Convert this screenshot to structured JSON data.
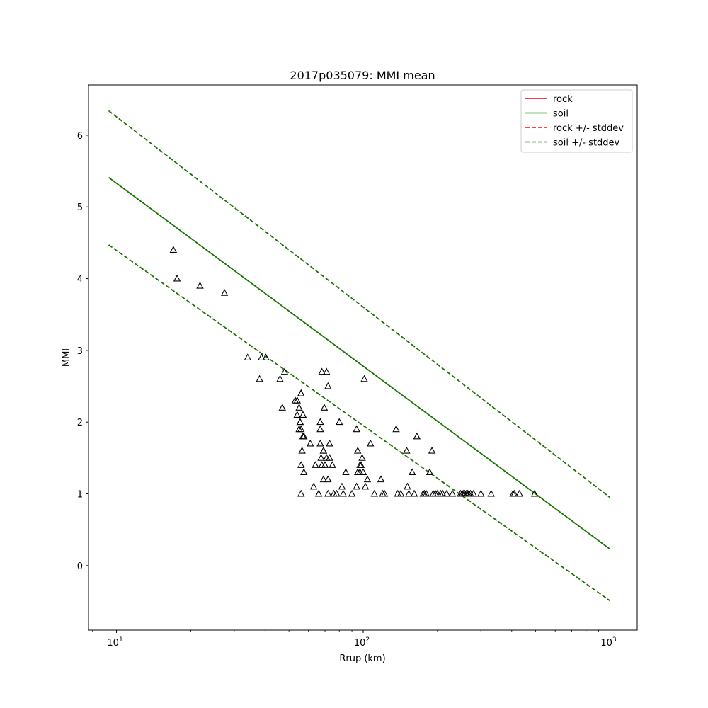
{
  "chart_data": {
    "type": "scatter",
    "title": "2017p035079: MMI mean",
    "xlabel": "Rrup (km)",
    "ylabel": "MMI",
    "xscale": "log",
    "xlim": [
      7.7,
      1290
    ],
    "ylim": [
      -0.9,
      6.7
    ],
    "x_ticks": [
      10,
      100,
      1000
    ],
    "x_tick_labels": [
      {
        "base": "10",
        "exp": "1"
      },
      {
        "base": "10",
        "exp": "2"
      },
      {
        "base": "10",
        "exp": "3"
      }
    ],
    "y_ticks": [
      0,
      1,
      2,
      3,
      4,
      5,
      6
    ],
    "y_tick_labels": [
      "0",
      "1",
      "2",
      "3",
      "4",
      "5",
      "6"
    ],
    "grid": false,
    "legend_position": "top-right",
    "colors": {
      "rock": "#ff0000",
      "soil": "#008000",
      "points": "#000000"
    },
    "series": [
      {
        "name": "rock",
        "style": "solid",
        "color": "#ff0000",
        "x": [
          9.3,
          1000
        ],
        "y": [
          5.41,
          0.23
        ]
      },
      {
        "name": "soil",
        "style": "solid",
        "color": "#008000",
        "x": [
          9.3,
          1000
        ],
        "y": [
          5.41,
          0.23
        ]
      },
      {
        "name": "rock +/- stddev",
        "style": "dashed",
        "color": "#ff0000",
        "x": [
          9.3,
          1000
        ],
        "y_upper": [
          6.34,
          0.95
        ],
        "y_lower": [
          4.47,
          -0.49
        ]
      },
      {
        "name": "soil +/- stddev",
        "style": "dashed",
        "color": "#008000",
        "x": [
          9.3,
          1000
        ],
        "y_upper": [
          6.34,
          0.95
        ],
        "y_lower": [
          4.47,
          -0.49
        ]
      }
    ],
    "points": {
      "marker": "triangle",
      "x": [
        17,
        17.6,
        21.8,
        27.4,
        34,
        38,
        38.7,
        40.3,
        46,
        47,
        48,
        53,
        54,
        54,
        55,
        55,
        55.5,
        55.5,
        56,
        56,
        56,
        56,
        56,
        56.5,
        57,
        57,
        57.5,
        57.5,
        61,
        63,
        64,
        66,
        66,
        67,
        67,
        67,
        67.5,
        68,
        68,
        69,
        69,
        69,
        69.5,
        70,
        71,
        71,
        72,
        72,
        72,
        73,
        73,
        75,
        76,
        78,
        80,
        82,
        83,
        85,
        90,
        94,
        94,
        95,
        95,
        97,
        97,
        98,
        99,
        100,
        101,
        102,
        104,
        107,
        111,
        118,
        120,
        122,
        136,
        138,
        142,
        150,
        151,
        153,
        158,
        161,
        165,
        175,
        177,
        180,
        186,
        190,
        192,
        196,
        200,
        206,
        210,
        218,
        230,
        248,
        252,
        255,
        258,
        262,
        265,
        268,
        272,
        280,
        300,
        330,
        405,
        410,
        430,
        495
      ],
      "y": [
        4.4,
        4.0,
        3.9,
        3.8,
        2.9,
        2.6,
        2.9,
        2.9,
        2.6,
        2.2,
        2.7,
        2.3,
        2.1,
        2.3,
        2.2,
        1.9,
        2.0,
        2.0,
        1.9,
        2.4,
        2.4,
        1.4,
        1.0,
        1.6,
        2.1,
        1.8,
        1.8,
        1.3,
        1.7,
        1.1,
        1.4,
        1.0,
        1.0,
        2.0,
        1.9,
        1.7,
        1.5,
        1.4,
        2.7,
        1.6,
        1.6,
        1.2,
        2.2,
        1.4,
        2.7,
        1.5,
        1.2,
        1.0,
        2.5,
        1.5,
        1.7,
        1.4,
        1.0,
        1.0,
        2.0,
        1.1,
        1.0,
        1.3,
        1.0,
        1.1,
        1.9,
        1.3,
        1.6,
        1.3,
        1.4,
        1.4,
        1.5,
        1.3,
        2.6,
        1.1,
        1.2,
        1.7,
        1.0,
        1.2,
        1.0,
        1.0,
        1.9,
        1.0,
        1.0,
        1.6,
        1.1,
        1.0,
        1.3,
        1.0,
        1.8,
        1.0,
        1.0,
        1.0,
        1.3,
        1.6,
        1.0,
        1.0,
        1.0,
        1.0,
        1.0,
        1.0,
        1.0,
        1.0,
        1.0,
        1.0,
        1.0,
        1.0,
        1.0,
        1.0,
        1.0,
        1.0,
        1.0,
        1.0,
        1.0,
        1.0,
        1.0,
        1.0
      ]
    }
  }
}
